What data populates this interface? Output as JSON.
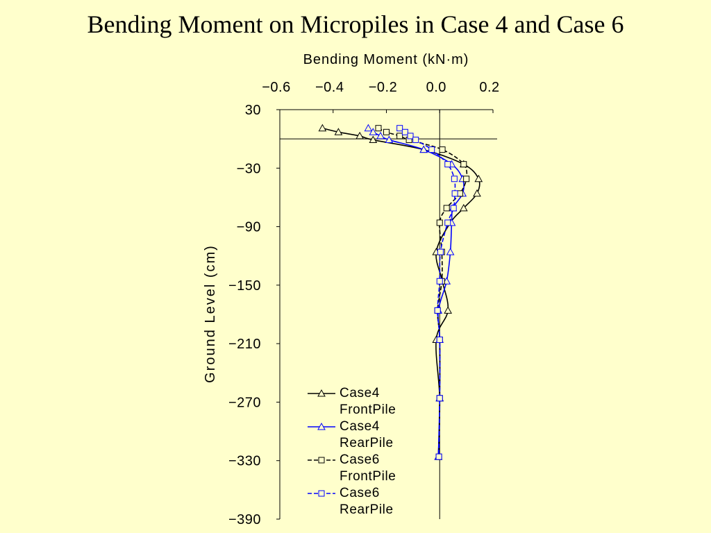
{
  "colors": {
    "background": "#FFFFCC",
    "axis": "#000000"
  },
  "chart_data": {
    "type": "line",
    "title": "Bending Moment on Micropiles in Case 4 and Case 6",
    "xlabel": "Bending Moment (kN·m)",
    "ylabel": "Ground Level (cm)",
    "x_axis_position": "top",
    "xlim": [
      -0.6,
      0.2
    ],
    "ylim": [
      -390,
      30
    ],
    "x_ticks": [
      {
        "value": -0.6,
        "label": "−0.6"
      },
      {
        "value": -0.4,
        "label": "−0.4"
      },
      {
        "value": -0.2,
        "label": "−0.2"
      },
      {
        "value": 0.0,
        "label": "0.0"
      },
      {
        "value": 0.2,
        "label": "0.2"
      }
    ],
    "y_ticks": [
      {
        "value": 30,
        "label": "30"
      },
      {
        "value": -30,
        "label": "−30"
      },
      {
        "value": -90,
        "label": "−90"
      },
      {
        "value": -150,
        "label": "−150"
      },
      {
        "value": -210,
        "label": "−210"
      },
      {
        "value": -270,
        "label": "−270"
      },
      {
        "value": -330,
        "label": "−330"
      },
      {
        "value": -390,
        "label": "−390"
      }
    ],
    "reference_lines": {
      "x": 0,
      "y": 0
    },
    "grid": false,
    "legend": "bottom-left",
    "series": [
      {
        "name": "Case4 FrontPile",
        "color": "#000000",
        "marker": "triangle",
        "line": "solid",
        "smooth": true,
        "points": [
          [
            -0.44,
            11
          ],
          [
            -0.38,
            7
          ],
          [
            -0.3,
            3
          ],
          [
            -0.25,
            -1
          ],
          [
            -0.06,
            -11
          ],
          [
            0.09,
            -26
          ],
          [
            0.146,
            -41
          ],
          [
            0.14,
            -56
          ],
          [
            0.09,
            -71
          ],
          [
            0.04,
            -86
          ],
          [
            -0.013,
            -116
          ],
          [
            0.01,
            -146
          ],
          [
            0.031,
            -176
          ],
          [
            -0.013,
            -206
          ],
          [
            0.0,
            -266
          ],
          [
            -0.005,
            -326
          ]
        ]
      },
      {
        "name": "Case4 RearPile",
        "color": "#0000FF",
        "marker": "triangle",
        "line": "solid",
        "smooth": true,
        "points": [
          [
            -0.268,
            11
          ],
          [
            -0.25,
            7
          ],
          [
            -0.222,
            3
          ],
          [
            -0.19,
            -1
          ],
          [
            -0.06,
            -11
          ],
          [
            0.045,
            -26
          ],
          [
            0.086,
            -41
          ],
          [
            0.086,
            -56
          ],
          [
            0.05,
            -71
          ],
          [
            0.045,
            -86
          ],
          [
            0.04,
            -116
          ],
          [
            0.026,
            -146
          ],
          [
            -0.005,
            -176
          ],
          [
            0.0,
            -206
          ],
          [
            0.0,
            -266
          ],
          [
            -0.005,
            -326
          ]
        ]
      },
      {
        "name": "Case6 FrontPile",
        "color": "#000000",
        "marker": "square",
        "line": "dashed",
        "smooth": true,
        "points": [
          [
            -0.23,
            11
          ],
          [
            -0.2,
            7
          ],
          [
            -0.15,
            3
          ],
          [
            -0.115,
            -1
          ],
          [
            0.01,
            -11
          ],
          [
            0.09,
            -26
          ],
          [
            0.1,
            -41
          ],
          [
            0.076,
            -56
          ],
          [
            0.026,
            -71
          ],
          [
            0.0,
            -86
          ],
          [
            0.008,
            -116
          ],
          [
            0.008,
            -146
          ],
          [
            -0.008,
            -176
          ],
          [
            0.0,
            -206
          ],
          [
            0.0,
            -266
          ],
          [
            -0.003,
            -326
          ]
        ]
      },
      {
        "name": "Case6 RearPile",
        "color": "#0000FF",
        "marker": "square",
        "line": "dashed",
        "smooth": true,
        "points": [
          [
            -0.15,
            11
          ],
          [
            -0.13,
            7
          ],
          [
            -0.11,
            3
          ],
          [
            -0.09,
            -1
          ],
          [
            -0.03,
            -11
          ],
          [
            0.03,
            -26
          ],
          [
            0.055,
            -41
          ],
          [
            0.057,
            -56
          ],
          [
            0.052,
            -71
          ],
          [
            0.03,
            -86
          ],
          [
            0.003,
            -116
          ],
          [
            0.0,
            -146
          ],
          [
            -0.008,
            -176
          ],
          [
            0.0,
            -206
          ],
          [
            0.0,
            -266
          ],
          [
            -0.003,
            -326
          ]
        ]
      }
    ]
  }
}
